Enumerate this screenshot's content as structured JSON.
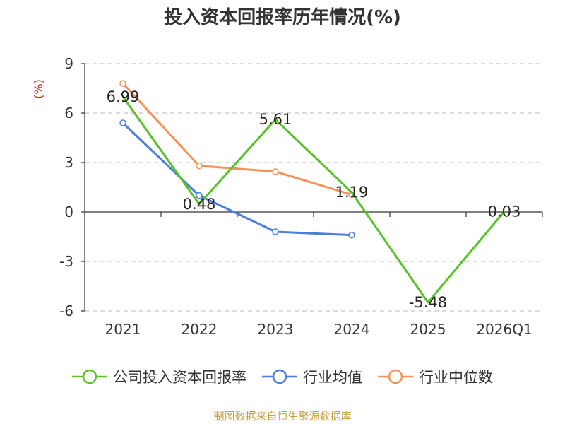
{
  "chart_data": {
    "type": "line",
    "title": "投入资本回报率历年情况(%)",
    "ylabel": "(%)",
    "categories": [
      "2021",
      "2022",
      "2023",
      "2024",
      "2025",
      "2026Q1"
    ],
    "ylim": [
      -6,
      9
    ],
    "yticks": [
      9,
      6,
      3,
      0,
      -3,
      -6
    ],
    "grid": true,
    "legend_position": "bottom",
    "series": [
      {
        "name": "公司投入资本回报率",
        "color": "#5ac229",
        "values": [
          6.99,
          0.48,
          5.61,
          1.19,
          -5.48,
          0.03
        ],
        "labels": [
          "6.99",
          "0.48",
          "5.61",
          "1.19",
          "-5.48",
          "0.03"
        ]
      },
      {
        "name": "行业均值",
        "color": "#4c7fdb",
        "values": [
          5.4,
          1.0,
          -1.2,
          -1.4,
          null,
          null
        ]
      },
      {
        "name": "行业中位数",
        "color": "#f6925a",
        "values": [
          7.8,
          2.8,
          2.45,
          1.05,
          null,
          null
        ]
      }
    ]
  },
  "source_note": "制图数据来自恒生聚源数据库"
}
